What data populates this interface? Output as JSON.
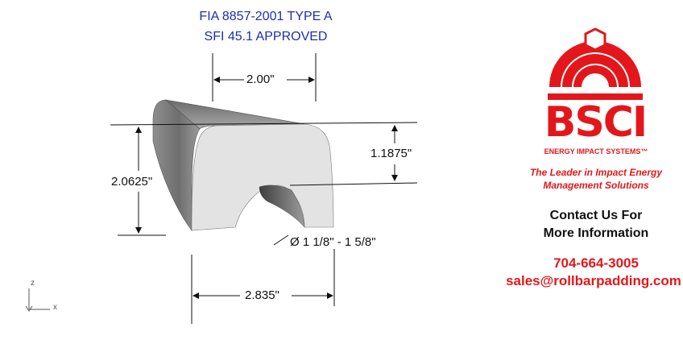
{
  "certification": {
    "line1": "FIA 8857-2001 TYPE A",
    "line2": "SFI 45.1 APPROVED"
  },
  "dimensions": {
    "width_top": "2.00\"",
    "height_total": "2.0625\"",
    "height_right": "1.1875\"",
    "width_bottom": "2.835\"",
    "bar_diameter": "Ø 1 1/8\" - 1 5/8\""
  },
  "axes": {
    "z": "z",
    "x": "x"
  },
  "brand": {
    "logo_text": "BSCI",
    "tagline_small": "ENERGY IMPACT SYSTEMS™",
    "slogan_line1": "The Leader in Impact Energy",
    "slogan_line2": "Management Solutions",
    "contact_line1": "Contact Us For",
    "contact_line2": "More Information",
    "phone": "704-664-3005",
    "email": "sales@rollbarpadding.com",
    "color": "#e3171b"
  }
}
